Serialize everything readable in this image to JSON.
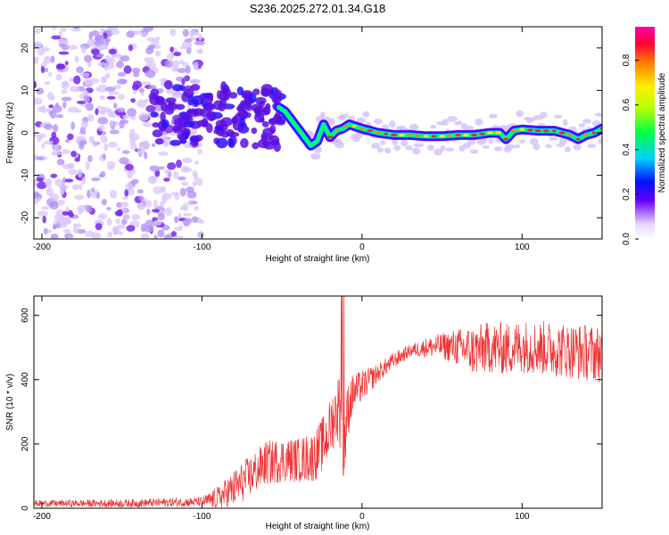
{
  "title": "S236.2025.272.01.34.G18",
  "chart_data": [
    {
      "type": "heatmap",
      "title": "S236.2025.272.01.34.G18",
      "xlabel": "Height of straight line (km)",
      "ylabel": "Frequency (Hz)",
      "xlim": [
        -205,
        150
      ],
      "ylim": [
        -25,
        25
      ],
      "xticks": [
        -200,
        -100,
        0,
        100
      ],
      "yticks": [
        -20,
        -10,
        0,
        10,
        20
      ],
      "grid": false,
      "colorbar": {
        "label": "Normalized spectral amplitude",
        "range": [
          0,
          0.95
        ],
        "ticks": [
          0.0,
          0.2,
          0.4,
          0.6,
          0.8
        ]
      },
      "ridge": {
        "description": "dominant frequency track",
        "x": [
          -52,
          -48,
          -44,
          -40,
          -36,
          -32,
          -28,
          -24,
          -20,
          -16,
          -12,
          -8,
          -4,
          0,
          10,
          20,
          30,
          40,
          50,
          60,
          70,
          80,
          86,
          90,
          95,
          100,
          110,
          120,
          125,
          130,
          135,
          140,
          145,
          150
        ],
        "y": [
          6,
          5,
          3,
          1,
          -1,
          -3,
          -2,
          2,
          -1,
          0.5,
          1,
          2,
          1.5,
          1,
          0,
          -0.5,
          -0.5,
          -0.8,
          -0.8,
          -0.5,
          -0.5,
          0,
          0,
          -1.5,
          0.5,
          0.8,
          0.5,
          0.5,
          0,
          -0.5,
          -1.5,
          -0.5,
          0,
          1
        ]
      }
    },
    {
      "type": "line",
      "xlabel": "Height of straight line (km)",
      "ylabel": "SNR (10 * v/v)",
      "xlim": [
        -205,
        150
      ],
      "ylim": [
        0,
        660
      ],
      "xticks": [
        -200,
        -100,
        0,
        100
      ],
      "yticks": [
        0,
        200,
        400,
        600
      ],
      "grid": false,
      "series": [
        {
          "name": "SNR",
          "color": "#ee3333",
          "envelope": {
            "x": [
              -205,
              -150,
              -100,
              -90,
              -80,
              -70,
              -60,
              -50,
              -40,
              -30,
              -22,
              -18,
              -14,
              -12,
              -10,
              -8,
              -5,
              0,
              5,
              10,
              20,
              30,
              40,
              50,
              60,
              70,
              80,
              90,
              100,
              110,
              120,
              130,
              140,
              150
            ],
            "y": [
              15,
              15,
              20,
              30,
              60,
              100,
              140,
              150,
              150,
              160,
              220,
              280,
              320,
              150,
              250,
              330,
              360,
              380,
              400,
              420,
              460,
              490,
              500,
              505,
              500,
              490,
              500,
              495,
              505,
              500,
              495,
              490,
              485,
              480
            ]
          },
          "noise_amplitude": {
            "x": [
              -205,
              -100,
              -80,
              -60,
              -40,
              -20,
              -12,
              -5,
              10,
              30,
              50,
              70,
              150
            ],
            "y": [
              10,
              15,
              60,
              70,
              70,
              90,
              120,
              60,
              30,
              20,
              40,
              80,
              90
            ]
          }
        }
      ]
    }
  ]
}
